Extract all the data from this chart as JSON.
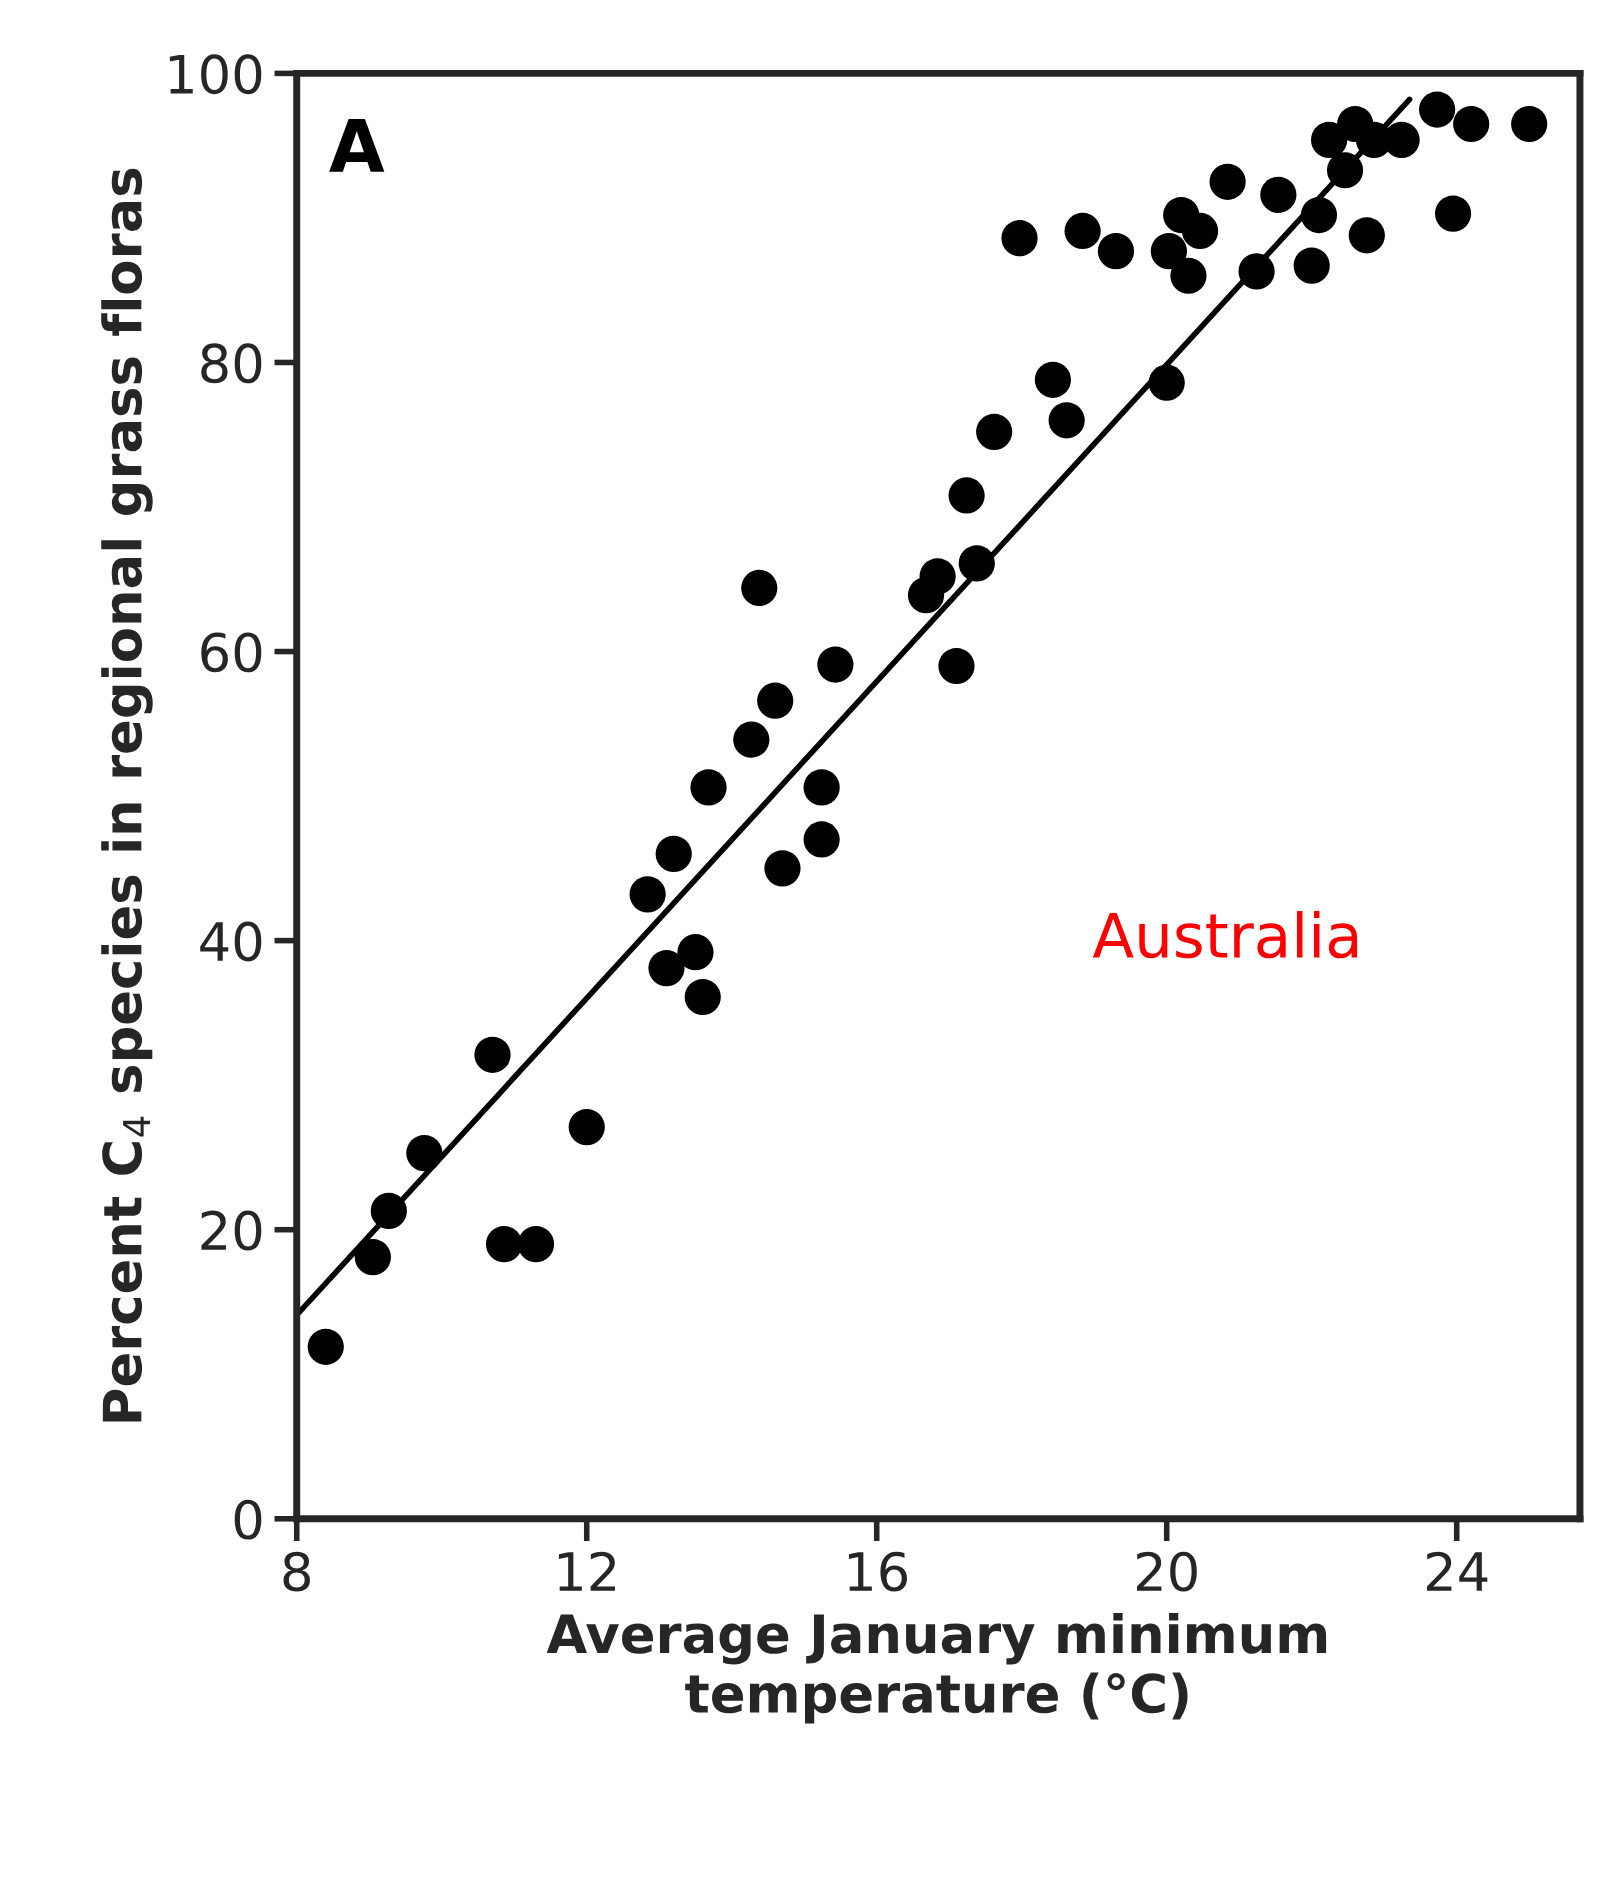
{
  "chart_data": {
    "type": "scatter",
    "xlabel": "Average January minimum\ntemperature (°C)",
    "ylabel": "Percent C$_{4}$ species in regional grass floras",
    "annotations": [
      "A",
      "Australia"
    ],
    "xlim": [
      8,
      25.7
    ],
    "ylim": [
      0,
      100
    ],
    "xticks": [
      8,
      12,
      16,
      20,
      24
    ],
    "yticks": [
      0,
      20,
      40,
      60,
      80,
      100
    ],
    "grid": false,
    "series": [
      {
        "color": "#000000",
        "marker": "circle",
        "x": [
          8.4,
          9.05,
          9.27,
          9.76,
          10.7,
          10.86,
          11.3,
          12.0,
          12.84,
          13.2,
          13.1,
          13.5,
          13.6,
          13.68,
          14.27,
          14.38,
          14.6,
          14.7,
          15.24,
          15.24,
          15.43,
          16.68,
          16.84,
          17.1,
          17.24,
          17.38,
          17.62,
          17.97,
          18.43,
          18.62,
          18.84,
          19.3,
          20.0,
          20.03,
          20.2,
          20.3,
          20.46,
          20.84,
          21.24,
          21.54,
          22.0,
          22.1,
          22.24,
          22.46,
          22.6,
          22.76,
          22.86,
          23.24,
          23.73,
          23.95,
          24.2,
          25.0
        ],
        "values": [
          11.9,
          18.1,
          21.3,
          25.3,
          32.1,
          19.0,
          19.0,
          27.1,
          43.2,
          46.0,
          38.1,
          39.2,
          36.1,
          50.6,
          53.9,
          64.4,
          56.6,
          45.0,
          50.6,
          47.0,
          59.1,
          63.9,
          65.2,
          59.0,
          70.8,
          66.1,
          75.2,
          88.6,
          78.8,
          76.0,
          89.1,
          87.7,
          78.6,
          87.7,
          90.2,
          86.0,
          89.1,
          92.5,
          86.3,
          91.6,
          86.7,
          90.2,
          95.4,
          93.3,
          96.5,
          88.8,
          95.4,
          95.4,
          97.5,
          90.3,
          96.5,
          96.5
        ]
      },
      {
        "type": "line",
        "color": "#000000",
        "x": [
          8,
          23.35
        ],
        "values": [
          14.1,
          98.2
        ]
      }
    ]
  }
}
